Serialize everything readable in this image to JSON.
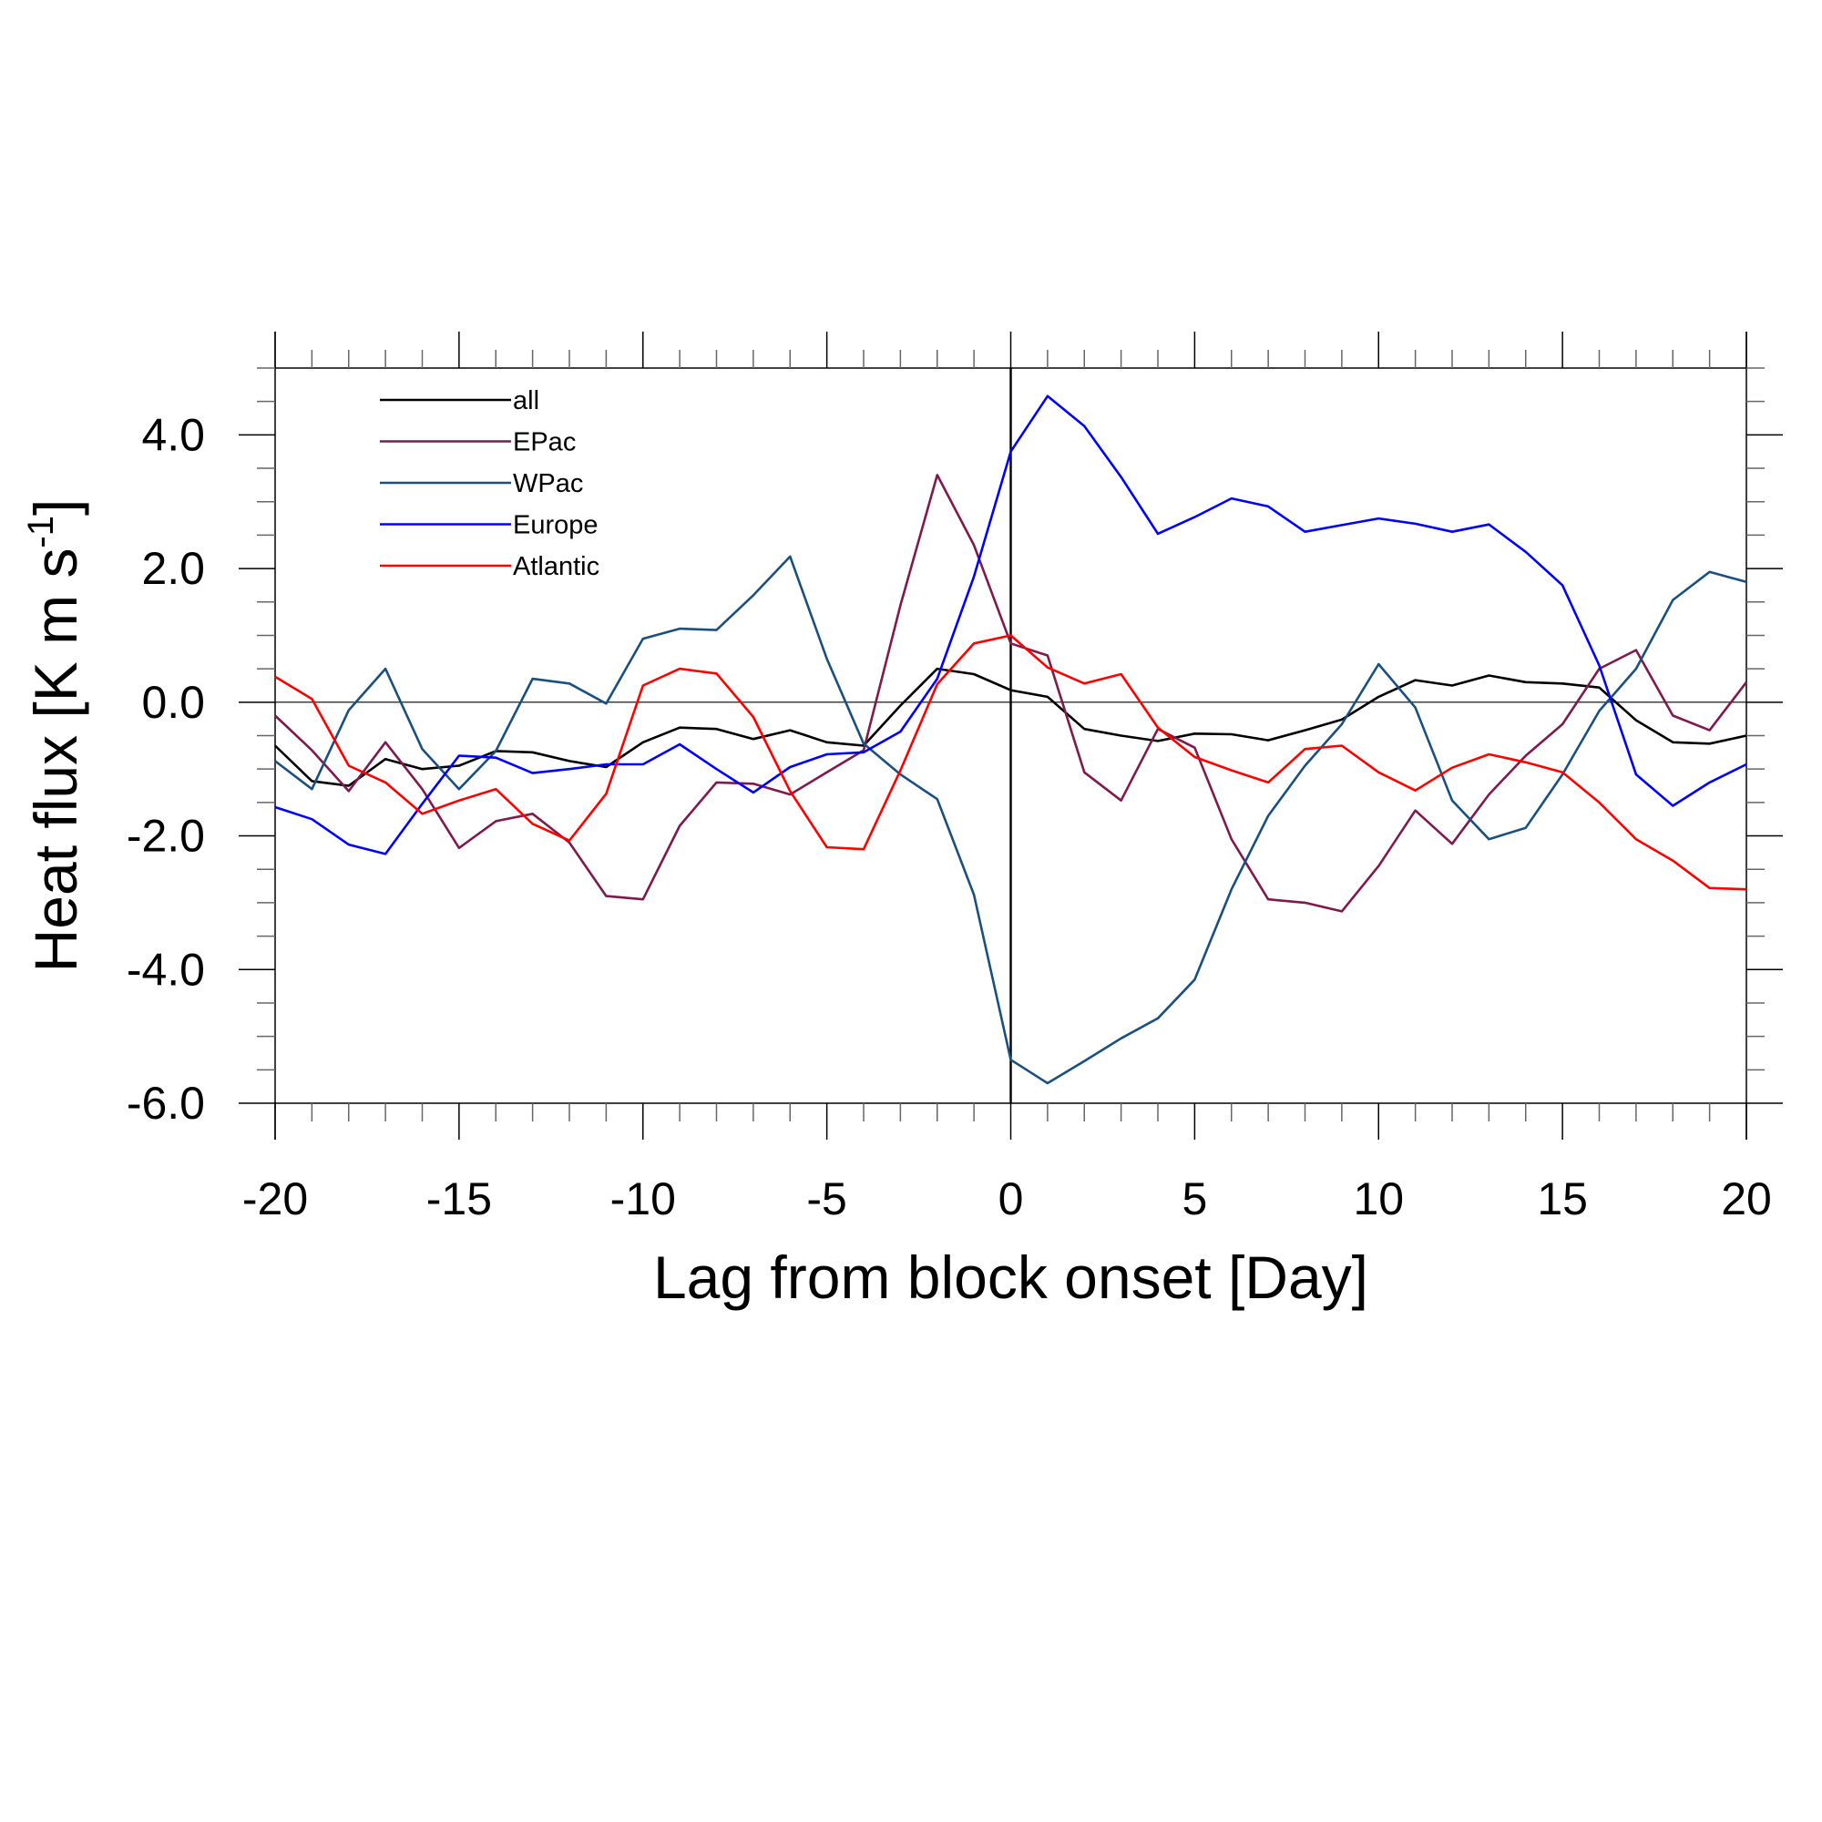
{
  "chart_data": {
    "type": "line",
    "xlabel": "Lag from block onset [Day]",
    "ylabel": "Heat flux [K m s",
    "ylabel_sup": "-1",
    "ylabel_end": "]",
    "xlim": [
      -20,
      20
    ],
    "ylim": [
      -6,
      5
    ],
    "x_ticks": [
      -20,
      -15,
      -10,
      -5,
      0,
      5,
      10,
      15,
      20
    ],
    "x_tick_labels": [
      "-20",
      "-15",
      "-10",
      "-5",
      "0",
      "5",
      "10",
      "15",
      "20"
    ],
    "y_ticks": [
      -6,
      -4,
      -2,
      0,
      2,
      4
    ],
    "y_tick_labels": [
      "-6.0",
      "-4.0",
      "-2.0",
      "0.0",
      "2.0",
      "4.0"
    ],
    "reference_lines": {
      "x": 0,
      "y": 0
    },
    "legend_position": "top-left",
    "x": [
      -20,
      -19,
      -18,
      -17,
      -16,
      -15,
      -14,
      -13,
      -12,
      -11,
      -10,
      -9,
      -8,
      -7,
      -6,
      -5,
      -4,
      -3,
      -2,
      -1,
      0,
      1,
      2,
      3,
      4,
      5,
      6,
      7,
      8,
      9,
      10,
      11,
      12,
      13,
      14,
      15,
      16,
      17,
      18,
      19,
      20
    ],
    "series": [
      {
        "name": "all",
        "color": "#000000",
        "values": [
          -0.65,
          -1.18,
          -1.25,
          -0.85,
          -1.0,
          -0.95,
          -0.73,
          -0.75,
          -0.88,
          -0.97,
          -0.6,
          -0.38,
          -0.4,
          -0.55,
          -0.42,
          -0.6,
          -0.65,
          -0.05,
          0.5,
          0.42,
          0.18,
          0.08,
          -0.4,
          -0.5,
          -0.58,
          -0.47,
          -0.48,
          -0.57,
          -0.42,
          -0.26,
          0.08,
          0.33,
          0.25,
          0.4,
          0.3,
          0.28,
          0.22,
          -0.27,
          -0.6,
          -0.62,
          -0.5
        ]
      },
      {
        "name": "EPac",
        "color": "#7f1a4c",
        "values": [
          -0.2,
          -0.72,
          -1.33,
          -0.6,
          -1.3,
          -2.18,
          -1.78,
          -1.67,
          -2.1,
          -2.9,
          -2.95,
          -1.85,
          -1.2,
          -1.22,
          -1.38,
          -1.05,
          -0.72,
          1.45,
          3.4,
          2.35,
          0.88,
          0.7,
          -1.05,
          -1.47,
          -0.4,
          -0.68,
          -2.05,
          -2.95,
          -3.0,
          -3.13,
          -2.45,
          -1.62,
          -2.12,
          -1.38,
          -0.8,
          -0.33,
          0.5,
          0.78,
          -0.2,
          -0.42,
          0.3
        ]
      },
      {
        "name": "WPac",
        "color": "#1a5080",
        "values": [
          -0.88,
          -1.3,
          -0.12,
          0.5,
          -0.7,
          -1.3,
          -0.73,
          0.35,
          0.28,
          -0.02,
          0.95,
          1.1,
          1.08,
          1.6,
          2.18,
          0.65,
          -0.62,
          -1.08,
          -1.45,
          -2.88,
          -5.35,
          -5.7,
          -5.37,
          -5.03,
          -4.73,
          -4.15,
          -2.8,
          -1.7,
          -0.95,
          -0.33,
          0.57,
          -0.08,
          -1.47,
          -2.05,
          -1.88,
          -1.08,
          -0.13,
          0.5,
          1.53,
          1.95,
          1.8
        ]
      },
      {
        "name": "Europe",
        "color": "#0000ff",
        "values": [
          -1.57,
          -1.75,
          -2.13,
          -2.27,
          -1.52,
          -0.8,
          -0.83,
          -1.06,
          -1.0,
          -0.93,
          -0.93,
          -0.63,
          -1.0,
          -1.35,
          -0.97,
          -0.78,
          -0.75,
          -0.44,
          0.35,
          1.88,
          3.75,
          4.58,
          4.13,
          3.37,
          2.52,
          2.77,
          3.05,
          2.93,
          2.55,
          2.65,
          2.75,
          2.67,
          2.55,
          2.66,
          2.25,
          1.75,
          0.55,
          -1.08,
          -1.55,
          -1.2,
          -0.93
        ]
      },
      {
        "name": "Atlantic",
        "color": "#ff0000",
        "values": [
          0.38,
          0.05,
          -0.95,
          -1.2,
          -1.67,
          -1.47,
          -1.3,
          -1.82,
          -2.07,
          -1.37,
          0.25,
          0.5,
          0.43,
          -0.22,
          -1.33,
          -2.17,
          -2.2,
          -1.02,
          0.27,
          0.88,
          1.0,
          0.52,
          0.28,
          0.42,
          -0.38,
          -0.82,
          -1.02,
          -1.2,
          -0.7,
          -0.65,
          -1.05,
          -1.32,
          -0.98,
          -0.78,
          -0.9,
          -1.05,
          -1.5,
          -2.05,
          -2.37,
          -2.78,
          -2.8
        ]
      }
    ]
  }
}
